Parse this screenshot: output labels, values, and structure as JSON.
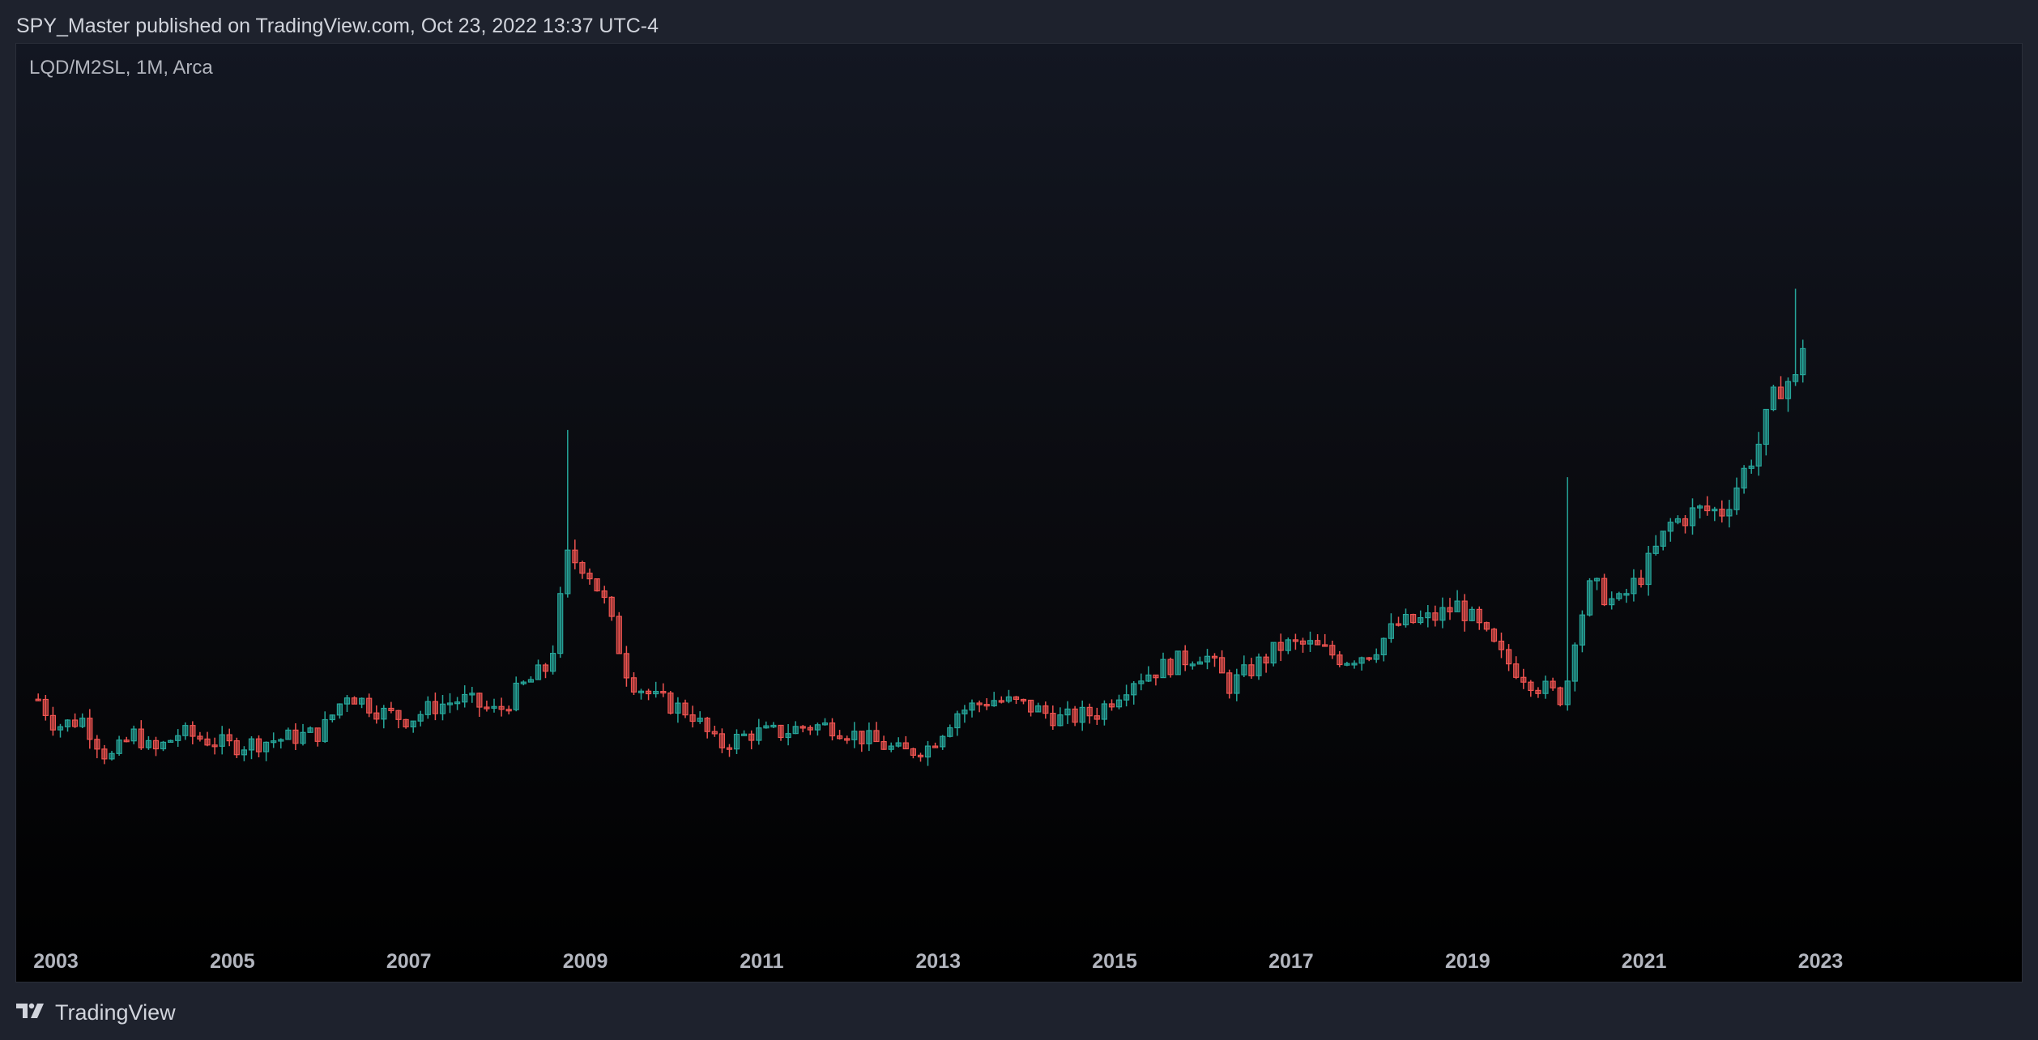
{
  "header": {
    "publisher_line": "SPY_Master published on TradingView.com, Oct 23, 2022 13:37 UTC-4"
  },
  "symbol": {
    "legend": "LQD/M2SL, 1M, Arca"
  },
  "footer": {
    "brand": "TradingView",
    "logo_icon": "tradingview-logo-icon"
  },
  "colors": {
    "background": "#1e222d",
    "up": "#26a69a",
    "down": "#ef5350",
    "text": "#d1d4dc"
  },
  "chart_data": {
    "type": "candlestick",
    "title": "LQD/M2SL, 1M, Arca",
    "interval": "1M",
    "x_range": [
      2002.55,
      2025.3
    ],
    "ylim": [
      0.4,
      1.7
    ],
    "grid": false,
    "x_ticks": [
      "2003",
      "2005",
      "2007",
      "2009",
      "2011",
      "2013",
      "2015",
      "2017",
      "2019",
      "2021",
      "2023"
    ],
    "anchors": [
      [
        2002.8,
        0.75
      ],
      [
        2003.0,
        0.71
      ],
      [
        2003.3,
        0.72
      ],
      [
        2003.6,
        0.66
      ],
      [
        2003.9,
        0.7
      ],
      [
        2004.1,
        0.67
      ],
      [
        2004.4,
        0.7
      ],
      [
        2004.7,
        0.69
      ],
      [
        2005.0,
        0.68
      ],
      [
        2005.5,
        0.69
      ],
      [
        2006.0,
        0.7
      ],
      [
        2006.3,
        0.76
      ],
      [
        2006.7,
        0.73
      ],
      [
        2007.0,
        0.72
      ],
      [
        2007.3,
        0.74
      ],
      [
        2007.6,
        0.75
      ],
      [
        2008.0,
        0.73
      ],
      [
        2008.3,
        0.77
      ],
      [
        2008.6,
        0.8
      ],
      [
        2008.8,
        0.96
      ],
      [
        2009.0,
        0.95
      ],
      [
        2009.2,
        0.9
      ],
      [
        2009.5,
        0.78
      ],
      [
        2009.8,
        0.75
      ],
      [
        2010.2,
        0.73
      ],
      [
        2010.5,
        0.68
      ],
      [
        2010.9,
        0.7
      ],
      [
        2011.2,
        0.7
      ],
      [
        2011.5,
        0.71
      ],
      [
        2011.8,
        0.71
      ],
      [
        2012.2,
        0.69
      ],
      [
        2012.6,
        0.67
      ],
      [
        2012.9,
        0.68
      ],
      [
        2013.2,
        0.73
      ],
      [
        2013.6,
        0.75
      ],
      [
        2014.0,
        0.74
      ],
      [
        2014.4,
        0.72
      ],
      [
        2014.8,
        0.73
      ],
      [
        2015.2,
        0.78
      ],
      [
        2015.6,
        0.8
      ],
      [
        2016.0,
        0.82
      ],
      [
        2016.3,
        0.77
      ],
      [
        2016.6,
        0.8
      ],
      [
        2016.9,
        0.83
      ],
      [
        2017.2,
        0.83
      ],
      [
        2017.6,
        0.81
      ],
      [
        2017.9,
        0.82
      ],
      [
        2018.2,
        0.86
      ],
      [
        2018.6,
        0.87
      ],
      [
        2018.9,
        0.89
      ],
      [
        2019.1,
        0.86
      ],
      [
        2019.4,
        0.81
      ],
      [
        2019.8,
        0.77
      ],
      [
        2020.1,
        0.75
      ],
      [
        2020.2,
        0.84
      ],
      [
        2020.4,
        0.92
      ],
      [
        2020.7,
        0.89
      ],
      [
        2021.0,
        0.94
      ],
      [
        2021.3,
        1.01
      ],
      [
        2021.6,
        1.03
      ],
      [
        2021.9,
        1.03
      ],
      [
        2022.1,
        1.08
      ],
      [
        2022.3,
        1.13
      ],
      [
        2022.45,
        1.19
      ],
      [
        2022.6,
        1.23
      ],
      [
        2022.7,
        1.21
      ],
      [
        2022.8,
        1.28
      ],
      [
        2022.83,
        1.33
      ]
    ],
    "notable_highs": [
      {
        "date": "2008-11",
        "value": 1.15
      },
      {
        "date": "2020-03",
        "value": 1.08
      },
      {
        "date": "2022-10",
        "value": 1.36
      }
    ]
  }
}
